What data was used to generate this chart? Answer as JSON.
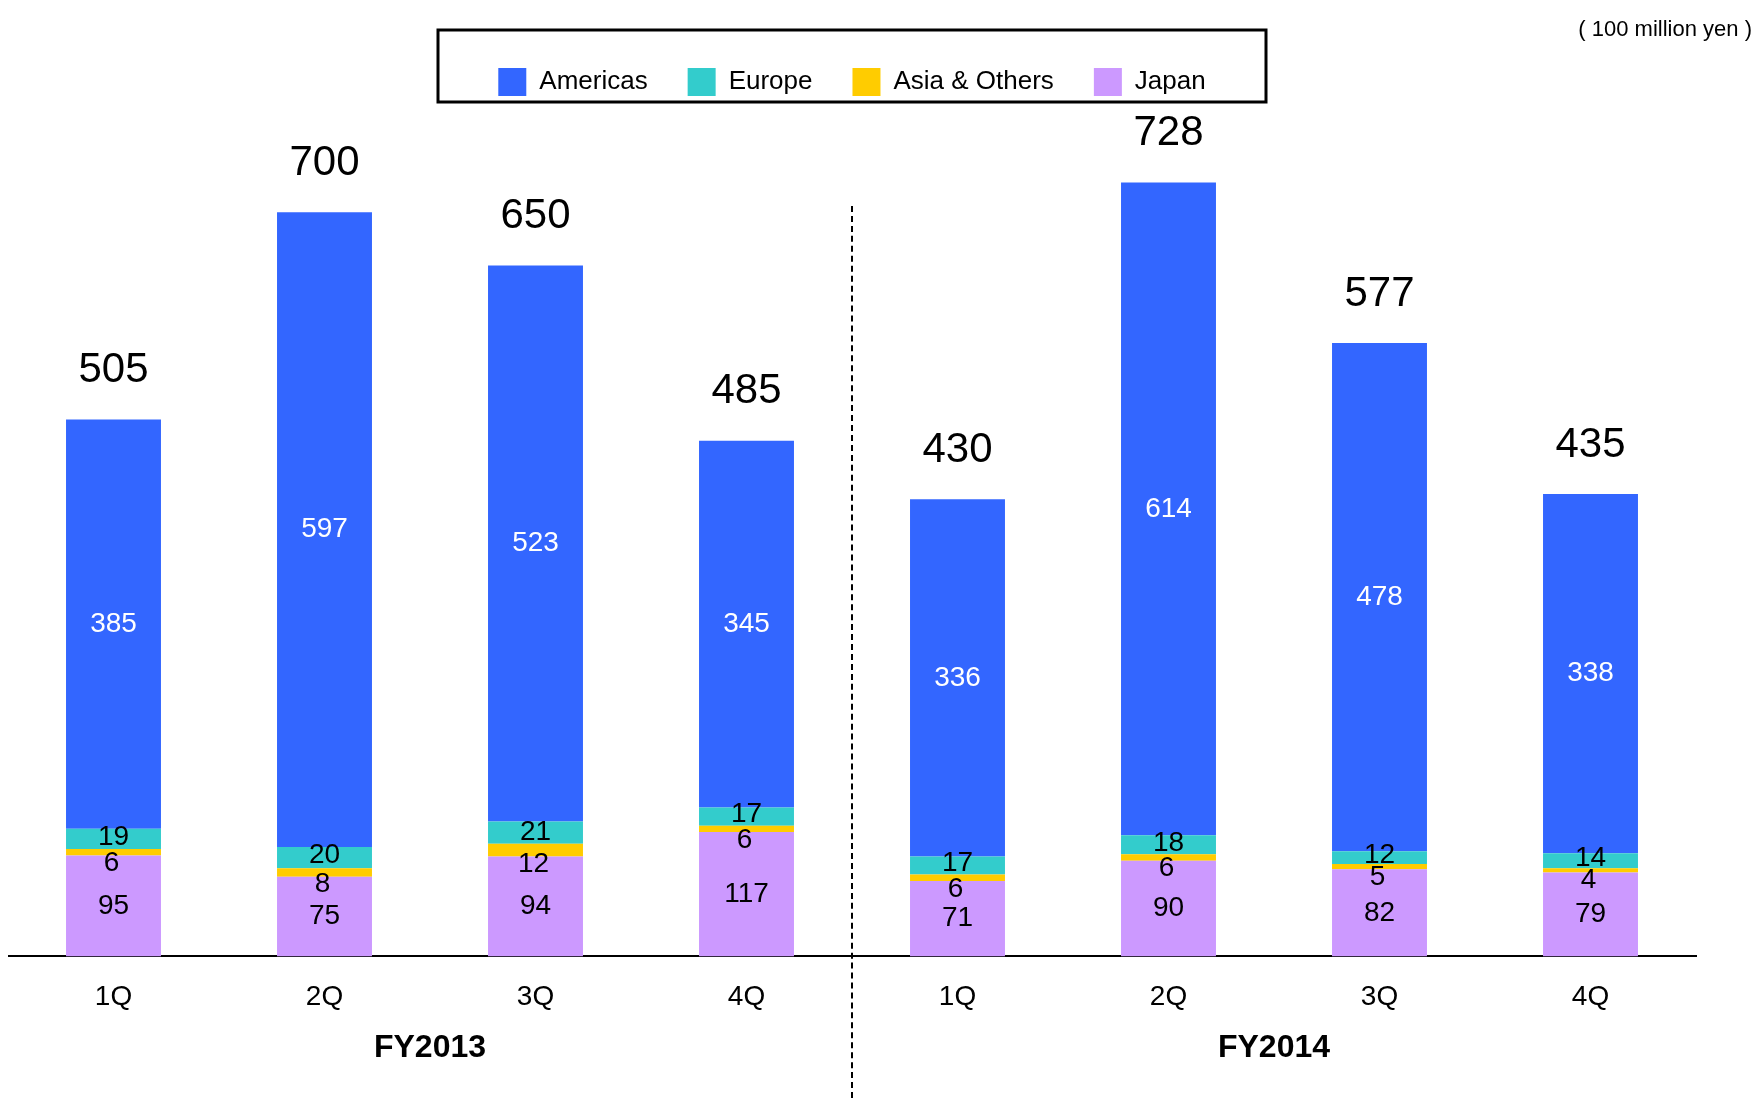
{
  "chart_data": {
    "type": "bar",
    "stacked": true,
    "categories": [
      "1Q",
      "2Q",
      "3Q",
      "4Q",
      "1Q",
      "2Q",
      "3Q",
      "4Q"
    ],
    "series": [
      {
        "name": "Japan",
        "color": "#cc99ff",
        "values": [
          95,
          75,
          94,
          117,
          71,
          90,
          82,
          79
        ]
      },
      {
        "name": "Asia & Others",
        "color": "#ffcc00",
        "values": [
          6,
          8,
          12,
          6,
          6,
          6,
          5,
          4
        ]
      },
      {
        "name": "Europe",
        "color": "#33cccc",
        "values": [
          19,
          20,
          21,
          17,
          17,
          18,
          12,
          14
        ]
      },
      {
        "name": "Americas",
        "color": "#3366ff",
        "values": [
          385,
          597,
          523,
          345,
          336,
          614,
          478,
          338
        ]
      }
    ],
    "totals": [
      "505",
      "700",
      "650",
      "485",
      "430",
      "728",
      "577",
      "435"
    ],
    "data_labels": true,
    "legend": "top",
    "annotations": [
      "( 100 million yen )",
      "FY2013",
      "FY2014"
    ]
  }
}
